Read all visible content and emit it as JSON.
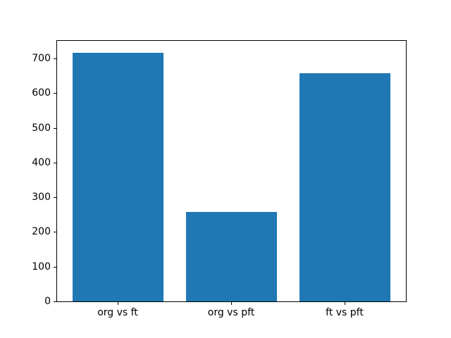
{
  "chart_data": {
    "type": "bar",
    "categories": [
      "org vs ft",
      "org vs pft",
      "ft vs pft"
    ],
    "values": [
      717,
      258,
      657
    ],
    "title": "",
    "xlabel": "",
    "ylabel": "",
    "yticks": [
      0,
      100,
      200,
      300,
      400,
      500,
      600,
      700
    ],
    "ylim": [
      0,
      753
    ],
    "xlim": [
      -0.54,
      2.54
    ],
    "bar_width": 0.8,
    "bar_color": "#1f77b4",
    "spine_color": "#000000",
    "text_color": "#000000",
    "background_color": "#ffffff",
    "grid": false,
    "legend": null
  }
}
